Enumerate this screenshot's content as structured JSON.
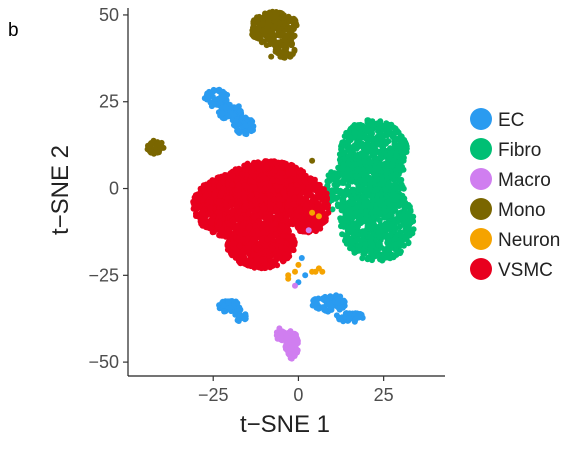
{
  "panel_label": "b",
  "chart_data": {
    "type": "scatter",
    "title": "",
    "xlabel": "t−SNE 1",
    "ylabel": "t−SNE 2",
    "xlim": [
      -50,
      43
    ],
    "ylim": [
      -54,
      52
    ],
    "xticks": [
      -25,
      0,
      25
    ],
    "xtick_labels": [
      "−25",
      "0",
      "25"
    ],
    "yticks": [
      50,
      25,
      0,
      -25,
      -50
    ],
    "ytick_labels": [
      "50",
      "25",
      "0",
      "−25",
      "−50"
    ],
    "grid": false,
    "legend_position": "right",
    "legend": [
      {
        "name": "EC",
        "color": "#2a9bf0"
      },
      {
        "name": "Fibro",
        "color": "#00bf74"
      },
      {
        "name": "Macro",
        "color": "#d07ef0"
      },
      {
        "name": "Mono",
        "color": "#7a6600"
      },
      {
        "name": "Neuron",
        "color": "#f5a300"
      },
      {
        "name": "VSMC",
        "color": "#e8001e"
      }
    ],
    "series": [
      {
        "name": "Mono",
        "color": "#7a6600",
        "clusters": [
          {
            "cx": -7,
            "cy": 46,
            "rx": 7,
            "ry": 5,
            "n": 220
          },
          {
            "cx": -4,
            "cy": 40,
            "rx": 3,
            "ry": 3,
            "n": 50
          },
          {
            "cx": -42,
            "cy": 12,
            "rx": 2.5,
            "ry": 2,
            "n": 40
          }
        ],
        "points": [
          [
            -8,
            38
          ],
          [
            4,
            8
          ],
          [
            16,
            5
          ],
          [
            3,
            -2
          ]
        ]
      },
      {
        "name": "EC",
        "color": "#2a9bf0",
        "clusters": [
          {
            "cx": -24,
            "cy": 26,
            "rx": 3.5,
            "ry": 2.5,
            "n": 60
          },
          {
            "cx": -20,
            "cy": 22,
            "rx": 3.5,
            "ry": 2.5,
            "n": 60
          },
          {
            "cx": -16,
            "cy": 18,
            "rx": 3,
            "ry": 2.5,
            "n": 50
          },
          {
            "cx": -20,
            "cy": -34,
            "rx": 3.5,
            "ry": 1.8,
            "n": 40
          },
          {
            "cx": -17,
            "cy": -37,
            "rx": 1.8,
            "ry": 1.5,
            "n": 15
          },
          {
            "cx": 9,
            "cy": -33,
            "rx": 5,
            "ry": 2.5,
            "n": 80
          },
          {
            "cx": 15,
            "cy": -37,
            "rx": 4,
            "ry": 1.5,
            "n": 40
          }
        ],
        "points": [
          [
            0,
            -27
          ],
          [
            2,
            -25
          ],
          [
            1,
            -20
          ]
        ]
      },
      {
        "name": "Fibro",
        "color": "#00bf74",
        "clusters": [
          {
            "cx": 22,
            "cy": 10,
            "rx": 10,
            "ry": 10,
            "n": 500
          },
          {
            "cx": 23,
            "cy": -10,
            "rx": 11,
            "ry": 11,
            "n": 600
          },
          {
            "cx": 19,
            "cy": 0,
            "rx": 12,
            "ry": 8,
            "n": 300
          }
        ],
        "points": [
          [
            9,
            -4
          ],
          [
            10,
            -6
          ],
          [
            11,
            -3
          ]
        ]
      },
      {
        "name": "VSMC",
        "color": "#e8001e",
        "clusters": [
          {
            "cx": -15,
            "cy": -5,
            "rx": 16,
            "ry": 10,
            "n": 1400
          },
          {
            "cx": -9,
            "cy": 2,
            "rx": 12,
            "ry": 6,
            "n": 500
          },
          {
            "cx": -11,
            "cy": -16,
            "rx": 10,
            "ry": 7,
            "n": 600
          },
          {
            "cx": 3,
            "cy": -5,
            "rx": 6,
            "ry": 8,
            "n": 300
          }
        ],
        "points": [
          [
            7,
            -2
          ],
          [
            8,
            -5
          ],
          [
            6,
            -10
          ]
        ]
      },
      {
        "name": "Macro",
        "color": "#d07ef0",
        "clusters": [
          {
            "cx": -2,
            "cy": -45,
            "rx": 2,
            "ry": 4,
            "n": 80
          },
          {
            "cx": -5,
            "cy": -42,
            "rx": 1.5,
            "ry": 2,
            "n": 20
          }
        ],
        "points": [
          [
            3,
            -12
          ],
          [
            -1,
            -28
          ]
        ]
      },
      {
        "name": "Neuron",
        "color": "#f5a300",
        "clusters": [],
        "points": [
          [
            5,
            -24
          ],
          [
            6,
            -23
          ],
          [
            4,
            -24
          ],
          [
            7,
            -24
          ],
          [
            -1,
            -24
          ],
          [
            -3,
            -26
          ],
          [
            0,
            -22
          ],
          [
            4,
            -7
          ],
          [
            6,
            -8
          ],
          [
            -3,
            -25
          ]
        ]
      }
    ]
  }
}
